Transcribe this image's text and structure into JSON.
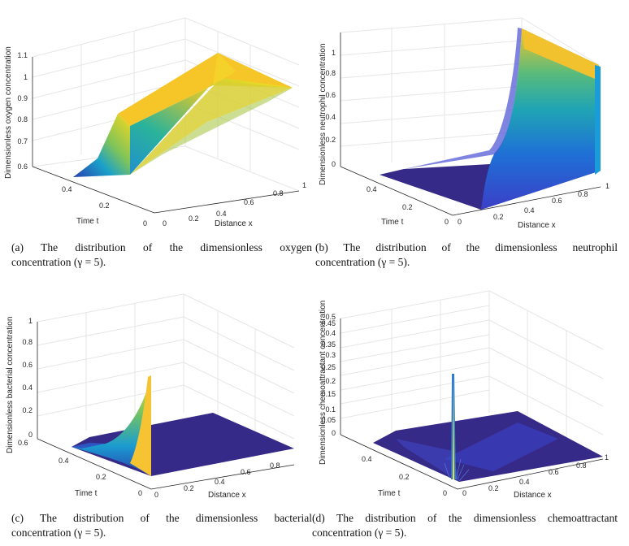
{
  "panels": [
    {
      "id": "a",
      "caption_line1": "(a)  The  distribution  of  the  dimensionless  oxygen",
      "caption_line2": "concentration (γ = 5).",
      "zlabel": "Dimensionless oxygen concentration",
      "xlabel": "Distance x",
      "ylabel": "Time t",
      "zticks": [
        "0.6",
        "0.7",
        "0.8",
        "0.9",
        "1",
        "1.1"
      ],
      "xticks": [
        "0",
        "0.2",
        "0.4",
        "0.6",
        "0.8",
        "1"
      ],
      "yticks": [
        "0",
        "0.2",
        "0.4"
      ]
    },
    {
      "id": "b",
      "caption_line1": "(b)  The  distribution  of  the  dimensionless  neutrophil",
      "caption_line2": "concentration (γ = 5).",
      "zlabel": "Dimensionless neutrophil concentration",
      "xlabel": "Distance x",
      "ylabel": "Time t",
      "zticks": [
        "0",
        "0.2",
        "0.4",
        "0.6",
        "0.8",
        "1"
      ],
      "xticks": [
        "0",
        "0.2",
        "0.4",
        "0.6",
        "0.8",
        "1"
      ],
      "yticks": [
        "0",
        "0.2",
        "0.4"
      ]
    },
    {
      "id": "c",
      "caption_line1": "(c)  The  distribution  of  the  dimensionless  bacterial",
      "caption_line2": "concentration (γ = 5).",
      "zlabel": "Dimensionless bacterial concentration",
      "xlabel": "Distance x",
      "ylabel": "Time t",
      "zticks": [
        "0",
        "0.2",
        "0.4",
        "0.6",
        "0.8",
        "1"
      ],
      "xticks": [
        "0",
        "0.2",
        "0.4",
        "0.6",
        "0.8"
      ],
      "yticks": [
        "0",
        "0.2",
        "0.4",
        "0.6"
      ]
    },
    {
      "id": "d",
      "caption_line1": "(d) The distribution of the dimensionless chemoattractant",
      "caption_line2": "concentration (γ = 5).",
      "zlabel": "Dimensionless chemoattractant concentration",
      "xlabel": "Distance x",
      "ylabel": "Time t",
      "zticks": [
        "0",
        "0.05",
        "0.1",
        "0.15",
        "0.2",
        "0.25",
        "0.3",
        "0.35",
        "0.4",
        "0.45",
        "0.5"
      ],
      "xticks": [
        "0",
        "0.2",
        "0.4",
        "0.6",
        "0.8",
        "1"
      ],
      "yticks": [
        "0",
        "0.2",
        "0.4"
      ]
    }
  ],
  "colors": {
    "deep": "#352a87",
    "blue": "#1f6fd6",
    "teal": "#21a6a0",
    "green": "#7fbf5f",
    "yellow": "#f9e51c",
    "orange": "#f6b93b",
    "grid": "#e6e6e6"
  }
}
